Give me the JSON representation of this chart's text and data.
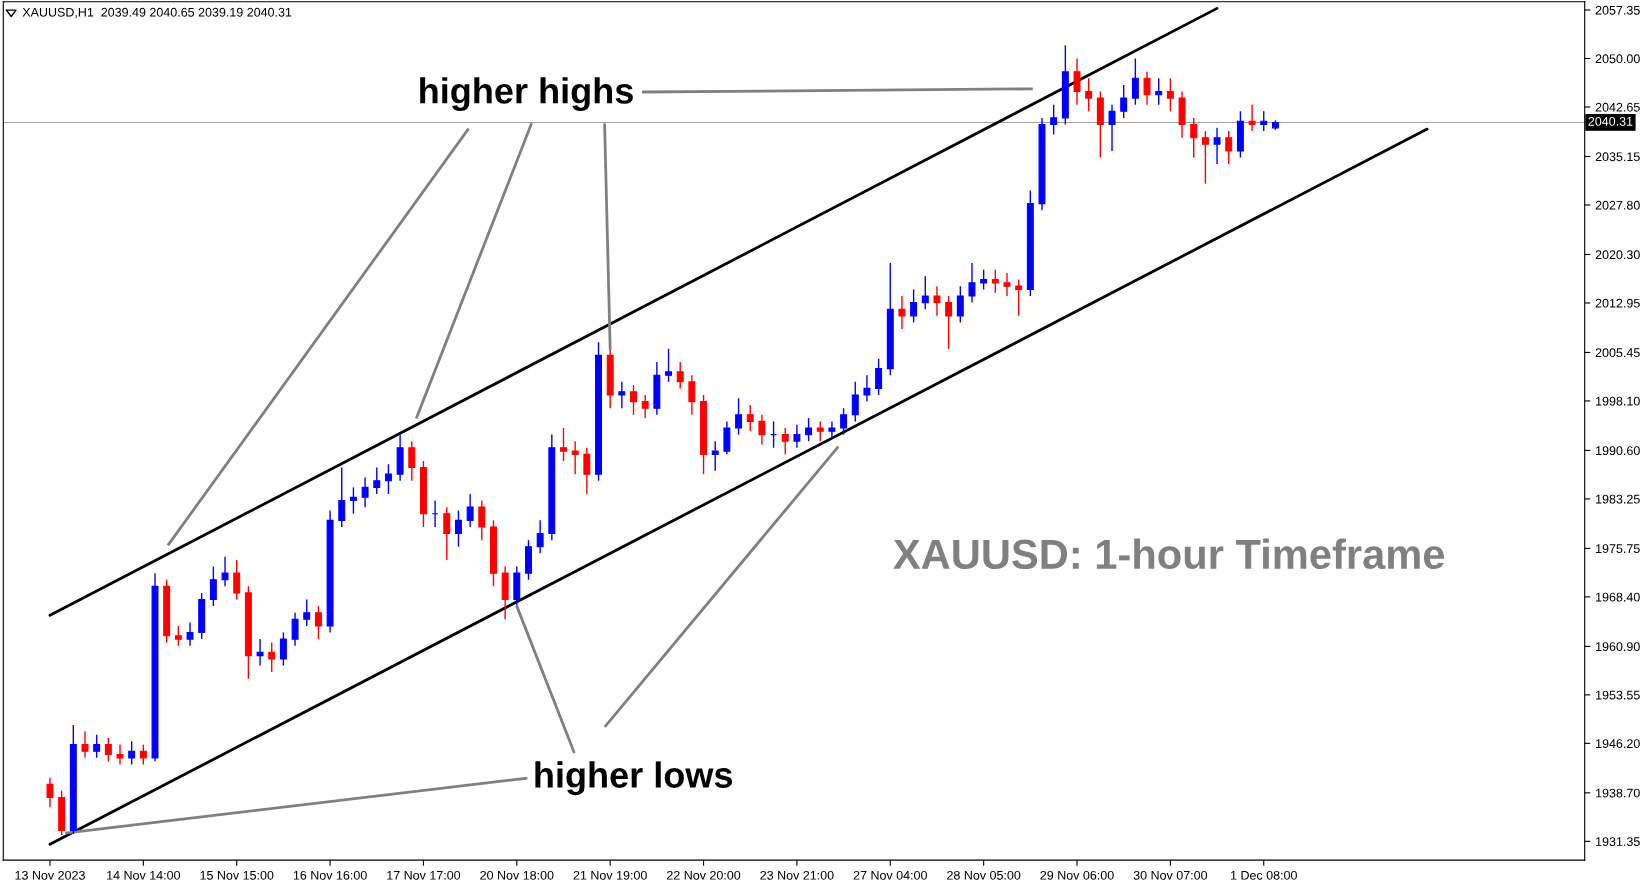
{
  "chart_data": {
    "type": "candlestick",
    "title": "XAUUSD: 1-hour Timeframe",
    "annotations": [
      "XAUUSD,H1  2039.49 2040.65 2039.19 2040.31",
      {
        "text": "higher highs",
        "x": "21 Nov 19:00",
        "y": 2006
      },
      {
        "text": "higher lows",
        "x": "20 Nov 18:00",
        "y": 1967
      }
    ],
    "categories": [
      "13 Nov 2023",
      null,
      null,
      null,
      null,
      null,
      null,
      null,
      "14 Nov 14:00",
      null,
      null,
      null,
      null,
      null,
      null,
      null,
      "15 Nov 15:00",
      null,
      null,
      null,
      null,
      null,
      null,
      null,
      "16 Nov 16:00",
      null,
      null,
      null,
      null,
      null,
      null,
      null,
      "17 Nov 17:00",
      null,
      null,
      null,
      null,
      null,
      null,
      null,
      "20 Nov 18:00",
      null,
      null,
      null,
      null,
      null,
      null,
      null,
      "21 Nov 19:00",
      null,
      null,
      null,
      null,
      null,
      null,
      null,
      "22 Nov 20:00",
      null,
      null,
      null,
      null,
      null,
      null,
      null,
      "23 Nov 21:00",
      null,
      null,
      null,
      null,
      null,
      null,
      null,
      "27 Nov 04:00",
      null,
      null,
      null,
      null,
      null,
      null,
      null,
      "28 Nov 05:00",
      null,
      null,
      null,
      null,
      null,
      null,
      null,
      "29 Nov 06:00",
      null,
      null,
      null,
      null,
      null,
      null,
      null,
      "30 Nov 07:00",
      null,
      null,
      null,
      null,
      null,
      null,
      null,
      "1 Dec 08:00",
      null,
      null,
      null,
      null,
      null,
      null,
      null,
      null,
      null,
      null,
      null,
      null,
      null,
      null,
      null,
      null,
      null,
      null,
      null,
      null,
      null,
      null,
      null,
      null,
      null,
      null,
      null
    ],
    "colors": [
      "#ff0000",
      "#ff0000",
      "#0000ff",
      "#ff0000",
      "#0000ff",
      "#ff0000",
      "#ff0000",
      "#0000ff",
      "#ff0000",
      "#0000ff",
      "#ff0000",
      "#ff0000",
      "#0000ff",
      "#0000ff",
      "#0000ff",
      "#0000ff",
      "#ff0000",
      "#ff0000",
      "#0000ff",
      "#ff0000",
      "#0000ff",
      "#0000ff",
      "#0000ff",
      "#ff0000",
      "#0000ff",
      "#0000ff",
      "#0000ff",
      "#0000ff",
      "#0000ff",
      "#0000ff",
      "#0000ff",
      "#ff0000",
      "#ff0000",
      "#0000ff",
      "#ff0000",
      "#0000ff",
      "#0000ff",
      "#ff0000",
      "#ff0000",
      "#ff0000",
      "#0000ff",
      "#0000ff",
      "#0000ff",
      "#0000ff",
      "#ff0000",
      "#ff0000",
      "#ff0000",
      "#0000ff",
      "#ff0000",
      "#0000ff",
      "#ff0000",
      "#ff0000",
      "#0000ff",
      "#0000ff",
      "#ff0000",
      "#ff0000",
      "#ff0000",
      "#0000ff",
      "#0000ff",
      "#0000ff",
      "#ff0000",
      "#ff0000",
      "#0000ff",
      "#ff0000",
      "#0000ff",
      "#0000ff",
      "#ff0000",
      "#0000ff",
      "#0000ff",
      "#0000ff",
      "#0000ff",
      "#0000ff",
      "#0000ff",
      "#ff0000",
      "#0000ff",
      "#0000ff",
      "#ff0000",
      "#ff0000",
      "#0000ff",
      "#0000ff",
      "#0000ff",
      "#ff0000",
      "#ff0000",
      "#ff0000",
      "#0000ff",
      "#0000ff",
      "#0000ff",
      "#0000ff",
      "#ff0000",
      "#ff0000",
      "#ff0000",
      "#0000ff",
      "#0000ff",
      "#0000ff",
      "#ff0000",
      "#0000ff",
      "#ff0000",
      "#ff0000",
      "#ff0000",
      "#ff0000",
      "#0000ff",
      "#ff0000",
      "#0000ff",
      "#ff0000",
      "#0000ff",
      "#0000ff",
      null,
      null,
      null,
      null,
      null,
      null,
      null,
      null,
      null,
      null,
      null,
      null,
      null,
      null,
      null,
      null,
      null,
      null,
      null,
      null,
      null,
      null,
      null,
      null,
      null,
      null
    ],
    "ohlc": [
      [
        1940,
        1941,
        1936.5,
        1938
      ],
      [
        1938,
        1939,
        1932.3,
        1933
      ],
      [
        1933,
        1949,
        1932.5,
        1946
      ],
      [
        1946,
        1948,
        1944,
        1945
      ],
      [
        1945,
        1947.5,
        1944,
        1946
      ],
      [
        1946,
        1947,
        1943.5,
        1944.5
      ],
      [
        1944.5,
        1946,
        1943,
        1944
      ],
      [
        1944,
        1946.5,
        1943,
        1945
      ],
      [
        1945,
        1946,
        1943,
        1944
      ],
      [
        1944,
        1972,
        1943.5,
        1970
      ],
      [
        1970,
        1971,
        1961.5,
        1962.5
      ],
      [
        1962.5,
        1964,
        1961,
        1962
      ],
      [
        1962,
        1964.5,
        1961,
        1963
      ],
      [
        1963,
        1969,
        1962,
        1968
      ],
      [
        1968,
        1973,
        1967,
        1971
      ],
      [
        1971,
        1974.5,
        1970,
        1972
      ],
      [
        1972,
        1974,
        1968,
        1969
      ],
      [
        1969,
        1970,
        1956,
        1959.5
      ],
      [
        1959.5,
        1962,
        1958,
        1960
      ],
      [
        1960,
        1961.5,
        1957,
        1959
      ],
      [
        1959,
        1963,
        1958,
        1962
      ],
      [
        1962,
        1966,
        1961,
        1965
      ],
      [
        1965,
        1968,
        1964,
        1966
      ],
      [
        1966,
        1967,
        1962,
        1964
      ],
      [
        1964,
        1981.5,
        1963,
        1980
      ],
      [
        1980,
        1988,
        1979,
        1983
      ],
      [
        1983,
        1985,
        1981,
        1983.5
      ],
      [
        1983.5,
        1986.5,
        1982,
        1985
      ],
      [
        1985,
        1988,
        1984,
        1986
      ],
      [
        1986,
        1988.5,
        1984,
        1987
      ],
      [
        1987,
        1993,
        1986,
        1991
      ],
      [
        1991,
        1992,
        1986,
        1988
      ],
      [
        1988,
        1989,
        1979,
        1981
      ],
      [
        1981,
        1983,
        1979,
        1981
      ],
      [
        1981,
        1982,
        1974,
        1978
      ],
      [
        1978,
        1981.5,
        1976,
        1980
      ],
      [
        1980,
        1984,
        1979,
        1982
      ],
      [
        1982,
        1983,
        1977,
        1979
      ],
      [
        1979,
        1980,
        1970,
        1972
      ],
      [
        1972,
        1973,
        1965,
        1968
      ],
      [
        1968,
        1973,
        1967,
        1972
      ],
      [
        1972,
        1977,
        1971,
        1976
      ],
      [
        1976,
        1980,
        1975,
        1978
      ],
      [
        1978,
        1993,
        1977,
        1991
      ],
      [
        1991,
        1994,
        1989,
        1990.5
      ],
      [
        1990.5,
        1992,
        1987,
        1990
      ],
      [
        1990,
        1991,
        1984,
        1987
      ],
      [
        1987,
        2007,
        1986,
        2005
      ],
      [
        2005,
        2006,
        1997,
        1999
      ],
      [
        1999,
        2001,
        1997,
        1999.5
      ],
      [
        1999.5,
        2000.5,
        1996,
        1998
      ],
      [
        1998,
        1999,
        1995.5,
        1997
      ],
      [
        1997,
        2004,
        1996,
        2002
      ],
      [
        2002,
        2006,
        2001,
        2002.5
      ],
      [
        2002.5,
        2004,
        2000,
        2001
      ],
      [
        2001,
        2002,
        1996,
        1998
      ],
      [
        1998,
        1999,
        1987,
        1990
      ],
      [
        1990,
        1992,
        1987.5,
        1990.5
      ],
      [
        1990.5,
        1995,
        1990,
        1994
      ],
      [
        1994,
        1998.5,
        1993,
        1996
      ],
      [
        1996,
        1997.5,
        1993.5,
        1995
      ],
      [
        1995,
        1996,
        1991.5,
        1993
      ],
      [
        1993,
        1995,
        1991,
        1993
      ],
      [
        1993,
        1994,
        1990,
        1992
      ],
      [
        1992,
        1994.5,
        1991,
        1993
      ],
      [
        1993,
        1995.5,
        1992,
        1994
      ],
      [
        1994,
        1995,
        1992,
        1993.5
      ],
      [
        1993.5,
        1995,
        1992.5,
        1994
      ],
      [
        1994,
        1997,
        1993,
        1996
      ],
      [
        1996,
        2001,
        1995,
        1999
      ],
      [
        1999,
        2002,
        1998,
        2000
      ],
      [
        2000,
        2004.5,
        1999,
        2003
      ],
      [
        2003,
        2019,
        2002,
        2012
      ],
      [
        2012,
        2014,
        2009,
        2011
      ],
      [
        2011,
        2015,
        2010,
        2013
      ],
      [
        2013,
        2017,
        2012,
        2014
      ],
      [
        2014,
        2015.5,
        2011,
        2013
      ],
      [
        2013,
        2014,
        2006,
        2011
      ],
      [
        2011,
        2015.5,
        2010,
        2014
      ],
      [
        2014,
        2019,
        2013,
        2016
      ],
      [
        2016,
        2018,
        2015,
        2016.5
      ],
      [
        2016.5,
        2018,
        2014.5,
        2016
      ],
      [
        2016,
        2017.5,
        2014,
        2015.5
      ],
      [
        2015.5,
        2016.5,
        2011,
        2015
      ],
      [
        2015,
        2030,
        2014,
        2028
      ],
      [
        2028,
        2041,
        2027,
        2040
      ],
      [
        2040,
        2043,
        2038.5,
        2041
      ],
      [
        2041,
        2052,
        2040,
        2048
      ],
      [
        2048,
        2050,
        2043,
        2045
      ],
      [
        2045,
        2047,
        2042,
        2044
      ],
      [
        2044,
        2045,
        2035,
        2040
      ],
      [
        2040,
        2043,
        2036,
        2042
      ],
      [
        2042,
        2046,
        2041,
        2044
      ],
      [
        2044,
        2050,
        2043,
        2047
      ],
      [
        2047,
        2048,
        2043,
        2044.5
      ],
      [
        2044.5,
        2047,
        2043,
        2045
      ],
      [
        2045,
        2047,
        2042,
        2044
      ],
      [
        2044,
        2045,
        2038,
        2040
      ],
      [
        2040,
        2041,
        2035,
        2038
      ],
      [
        2038,
        2039,
        2031,
        2037
      ],
      [
        2037,
        2039.5,
        2034,
        2038
      ],
      [
        2038,
        2039,
        2034,
        2036
      ],
      [
        2036,
        2042,
        2035,
        2040.5
      ],
      [
        2040.5,
        2043,
        2039,
        2040
      ],
      [
        2040,
        2042,
        2039,
        2040.5
      ],
      [
        2039.49,
        2040.65,
        2039.19,
        2040.31
      ],
      null,
      null,
      null,
      null,
      null,
      null,
      null,
      null,
      null,
      null,
      null,
      null,
      null,
      null,
      null,
      null,
      null,
      null,
      null,
      null,
      null,
      null,
      null,
      null,
      null,
      null
    ],
    "series": [
      {
        "type": "line",
        "color": "#000000",
        "values": [
          1965.6,
          null,
          null,
          null,
          null,
          null,
          null,
          null,
          null,
          null,
          null,
          null,
          null,
          null,
          null,
          null,
          null,
          null,
          null,
          null,
          null,
          null,
          null,
          null,
          null,
          null,
          null,
          null,
          null,
          null,
          null,
          null,
          null,
          null,
          null,
          null,
          null,
          null,
          null,
          null,
          null,
          null,
          null,
          null,
          null,
          null,
          null,
          null,
          null,
          null,
          null,
          null,
          null,
          null,
          null,
          null,
          null,
          null,
          null,
          null,
          null,
          null,
          null,
          null,
          null,
          null,
          null,
          null,
          null,
          null,
          null,
          null,
          null,
          null,
          null,
          null,
          null,
          null,
          null,
          null,
          null,
          null,
          null,
          null,
          null,
          null,
          null,
          null,
          null,
          null,
          null,
          null,
          null,
          null,
          null,
          null,
          null,
          null,
          null,
          null,
          2057.6,
          null,
          null,
          null,
          null,
          null,
          null,
          null,
          null,
          null,
          null,
          null,
          null,
          null,
          null,
          null,
          null,
          null,
          null,
          null,
          null,
          null,
          null,
          null,
          null,
          null,
          null,
          null,
          null,
          null,
          null,
          null
        ]
      },
      {
        "type": "line",
        "color": "#000000",
        "values": [
          1930.9,
          null,
          null,
          null,
          null,
          null,
          null,
          null,
          null,
          null,
          null,
          null,
          null,
          null,
          null,
          null,
          null,
          null,
          null,
          null,
          null,
          null,
          null,
          null,
          null,
          null,
          null,
          null,
          null,
          null,
          null,
          null,
          null,
          null,
          null,
          null,
          null,
          null,
          null,
          null,
          null,
          null,
          null,
          null,
          null,
          null,
          null,
          null,
          null,
          null,
          null,
          null,
          null,
          null,
          null,
          null,
          null,
          null,
          null,
          null,
          null,
          null,
          null,
          null,
          null,
          null,
          null,
          null,
          null,
          null,
          null,
          null,
          null,
          null,
          null,
          null,
          null,
          null,
          null,
          null,
          null,
          null,
          null,
          null,
          null,
          null,
          null,
          null,
          null,
          null,
          null,
          null,
          null,
          null,
          null,
          null,
          null,
          null,
          null,
          null,
          null,
          null,
          null,
          null,
          null,
          null,
          null,
          null,
          null,
          null,
          null,
          null,
          null,
          null,
          null,
          null,
          null,
          null,
          2039.3,
          null,
          null,
          null,
          null,
          null,
          null,
          null,
          null,
          null,
          null,
          null,
          null,
          null
        ]
      }
    ],
    "ref_lines": [
      {
        "axis": "y",
        "value": 2040.31,
        "label": "2040.31",
        "color": "#a0a0a0"
      }
    ],
    "ylim": [
      1928.5,
      2058.6
    ],
    "yticks": [
      1931.35,
      {
        "value": 1938.7,
        "label": "1938.70"
      },
      {
        "value": 1946.2,
        "label": "1946.20"
      },
      1953.55,
      {
        "value": 1960.9,
        "label": "1960.90"
      },
      {
        "value": 1968.4,
        "label": "1968.40"
      },
      1975.75,
      1983.25,
      {
        "value": 1990.6,
        "label": "1990.60"
      },
      {
        "value": 1998.1,
        "label": "1998.10"
      },
      2005.45,
      2012.95,
      {
        "value": 2020.3,
        "label": "2020.30"
      },
      {
        "value": 2027.8,
        "label": "2027.80"
      },
      2035.15,
      2042.65,
      {
        "value": 2050,
        "label": "2050.00"
      },
      2057.35
    ],
    "grid": false,
    "legend": false
  }
}
